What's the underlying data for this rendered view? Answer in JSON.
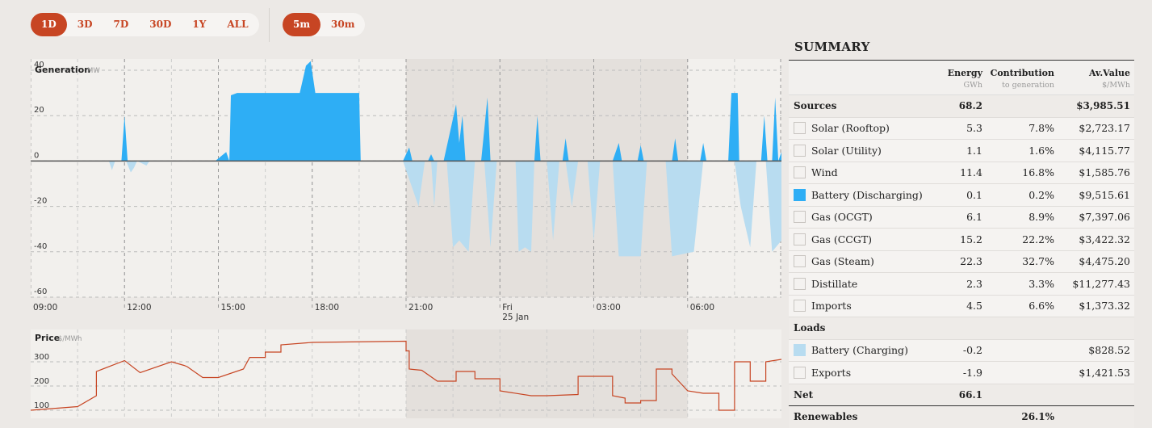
{
  "range_buttons": [
    {
      "label": "1D",
      "active": true
    },
    {
      "label": "3D",
      "active": false
    },
    {
      "label": "7D",
      "active": false
    },
    {
      "label": "30D",
      "active": false
    },
    {
      "label": "1Y",
      "active": false
    },
    {
      "label": "ALL",
      "active": false
    }
  ],
  "interval_buttons": [
    {
      "label": "5m",
      "active": true
    },
    {
      "label": "30m",
      "active": false
    }
  ],
  "generation_chart": {
    "title": "Generation",
    "unit": "MW",
    "y_ticks": [
      "40",
      "20",
      "0",
      "-20",
      "-40",
      "-60"
    ],
    "x_ticks": [
      {
        "line1": "09:00",
        "line2": ""
      },
      {
        "line1": "12:00",
        "line2": ""
      },
      {
        "line1": "15:00",
        "line2": ""
      },
      {
        "line1": "18:00",
        "line2": ""
      },
      {
        "line1": "21:00",
        "line2": ""
      },
      {
        "line1": "Fri",
        "line2": "25 Jan"
      },
      {
        "line1": "03:00",
        "line2": ""
      },
      {
        "line1": "06:00",
        "line2": ""
      }
    ]
  },
  "price_chart": {
    "title": "Price",
    "unit": "$/MWh",
    "y_ticks": [
      "300",
      "200",
      "100"
    ]
  },
  "chart_data": [
    {
      "type": "area",
      "ylabel": "Generation MW",
      "ylim": [
        -60,
        45
      ],
      "x_range_hours": [
        9,
        33
      ],
      "x_tick_labels": [
        "09:00",
        "12:00",
        "15:00",
        "18:00",
        "21:00",
        "Fri 25 Jan",
        "03:00",
        "06:00"
      ],
      "y_tick_labels": [
        "40",
        "20",
        "0",
        "-20",
        "-40",
        "-60"
      ],
      "series": [
        {
          "name": "Battery (Discharging)",
          "color": "#2eaef5",
          "points": [
            [
              9,
              0
            ],
            [
              11.9,
              0
            ],
            [
              12,
              20
            ],
            [
              12.1,
              0
            ],
            [
              14.9,
              0
            ],
            [
              15.25,
              4
            ],
            [
              15.35,
              0
            ],
            [
              15.4,
              29
            ],
            [
              15.6,
              30
            ],
            [
              17.6,
              30
            ],
            [
              17.8,
              42
            ],
            [
              17.95,
              44
            ],
            [
              18.1,
              30
            ],
            [
              19.5,
              30
            ],
            [
              19.55,
              0
            ],
            [
              20.9,
              0
            ],
            [
              21.1,
              6
            ],
            [
              21.2,
              0
            ],
            [
              21.7,
              0
            ],
            [
              21.8,
              3
            ],
            [
              21.9,
              0
            ],
            [
              22.2,
              0
            ],
            [
              22.6,
              25
            ],
            [
              22.7,
              8
            ],
            [
              22.8,
              20
            ],
            [
              22.9,
              0
            ],
            [
              23.4,
              0
            ],
            [
              23.6,
              28
            ],
            [
              23.7,
              0
            ],
            [
              25.1,
              0
            ],
            [
              25.2,
              20
            ],
            [
              25.3,
              0
            ],
            [
              26.0,
              0
            ],
            [
              26.1,
              10
            ],
            [
              26.2,
              0
            ],
            [
              27.6,
              0
            ],
            [
              27.8,
              8
            ],
            [
              27.9,
              0
            ],
            [
              28.4,
              0
            ],
            [
              28.5,
              7
            ],
            [
              28.6,
              0
            ],
            [
              29.5,
              0
            ],
            [
              29.6,
              10
            ],
            [
              29.7,
              0
            ],
            [
              30.4,
              0
            ],
            [
              30.5,
              8
            ],
            [
              30.6,
              0
            ],
            [
              31.3,
              0
            ],
            [
              31.4,
              30
            ],
            [
              31.6,
              30
            ],
            [
              31.65,
              0
            ],
            [
              32.35,
              0
            ],
            [
              32.45,
              20
            ],
            [
              32.55,
              0
            ],
            [
              32.7,
              0
            ],
            [
              32.8,
              28
            ],
            [
              32.9,
              0
            ],
            [
              33,
              4
            ]
          ]
        },
        {
          "name": "Battery (Charging)",
          "color": "#b8dcf0",
          "points": [
            [
              9,
              0
            ],
            [
              11.5,
              0
            ],
            [
              11.6,
              -4
            ],
            [
              11.7,
              0
            ],
            [
              12.05,
              0
            ],
            [
              12.2,
              -5
            ],
            [
              12.3,
              -3
            ],
            [
              12.4,
              0
            ],
            [
              12.7,
              -2
            ],
            [
              12.8,
              0
            ],
            [
              20.9,
              0
            ],
            [
              21.4,
              -20
            ],
            [
              21.6,
              0
            ],
            [
              21.8,
              0
            ],
            [
              21.9,
              -20
            ],
            [
              22.0,
              0
            ],
            [
              22.3,
              0
            ],
            [
              22.5,
              -38
            ],
            [
              22.7,
              -35
            ],
            [
              23.0,
              -40
            ],
            [
              23.2,
              0
            ],
            [
              23.5,
              0
            ],
            [
              23.7,
              -38
            ],
            [
              23.9,
              0
            ],
            [
              24.5,
              0
            ],
            [
              24.6,
              -40
            ],
            [
              24.8,
              -38
            ],
            [
              25.0,
              -40
            ],
            [
              25.1,
              0
            ],
            [
              25.5,
              0
            ],
            [
              25.7,
              -35
            ],
            [
              25.9,
              0
            ],
            [
              26.1,
              0
            ],
            [
              26.3,
              -20
            ],
            [
              26.5,
              0
            ],
            [
              26.8,
              0
            ],
            [
              27.0,
              -35
            ],
            [
              27.2,
              0
            ],
            [
              27.6,
              0
            ],
            [
              27.8,
              -42
            ],
            [
              28.0,
              -42
            ],
            [
              28.5,
              -42
            ],
            [
              28.7,
              0
            ],
            [
              29.3,
              0
            ],
            [
              29.5,
              -42
            ],
            [
              30.2,
              -40
            ],
            [
              30.5,
              0
            ],
            [
              31.5,
              0
            ],
            [
              31.7,
              -20
            ],
            [
              32.0,
              -38
            ],
            [
              32.2,
              0
            ],
            [
              32.5,
              0
            ],
            [
              32.7,
              -40
            ],
            [
              33,
              -35
            ]
          ]
        }
      ]
    },
    {
      "type": "line",
      "ylabel": "Price $/MWh",
      "ylim": [
        0,
        400
      ],
      "x_range_hours": [
        9,
        33
      ],
      "y_tick_labels": [
        "300",
        "200",
        "100"
      ],
      "series": [
        {
          "name": "Price",
          "color": "#c74523",
          "points": [
            [
              9,
              100
            ],
            [
              10,
              110
            ],
            [
              10.5,
              115
            ],
            [
              11.1,
              160
            ],
            [
              11.1,
              260
            ],
            [
              12,
              305
            ],
            [
              12.5,
              255
            ],
            [
              13.5,
              300
            ],
            [
              13.9,
              285
            ],
            [
              14,
              280
            ],
            [
              14.5,
              235
            ],
            [
              15,
              235
            ],
            [
              15.8,
              270
            ],
            [
              16,
              318
            ],
            [
              16.5,
              318
            ],
            [
              16.5,
              340
            ],
            [
              17.0,
              340
            ],
            [
              17.0,
              370
            ],
            [
              18.0,
              380
            ],
            [
              21.0,
              385
            ],
            [
              21.0,
              345
            ],
            [
              21.1,
              345
            ],
            [
              21.1,
              270
            ],
            [
              21.5,
              265
            ],
            [
              22.0,
              220
            ],
            [
              22.6,
              220
            ],
            [
              22.6,
              260
            ],
            [
              23.2,
              260
            ],
            [
              23.2,
              230
            ],
            [
              24.0,
              230
            ],
            [
              24.0,
              180
            ],
            [
              25.0,
              160
            ],
            [
              25.5,
              160
            ],
            [
              25.5,
              160
            ],
            [
              26.5,
              165
            ],
            [
              26.5,
              240
            ],
            [
              27.5,
              240
            ],
            [
              27.6,
              240
            ],
            [
              27.6,
              160
            ],
            [
              28.0,
              150
            ],
            [
              28.0,
              130
            ],
            [
              28.5,
              130
            ],
            [
              28.5,
              140
            ],
            [
              29.0,
              140
            ],
            [
              29.0,
              270
            ],
            [
              29.5,
              270
            ],
            [
              29.5,
              250
            ],
            [
              30.0,
              180
            ],
            [
              30.5,
              170
            ],
            [
              31.0,
              170
            ],
            [
              31.0,
              100
            ],
            [
              31.5,
              100
            ],
            [
              31.5,
              300
            ],
            [
              32.0,
              300
            ],
            [
              32.0,
              220
            ],
            [
              32.5,
              220
            ],
            [
              32.5,
              300
            ],
            [
              33,
              310
            ]
          ]
        }
      ]
    }
  ],
  "summary": {
    "title": "SUMMARY",
    "headers": {
      "energy": "Energy",
      "energy_unit": "GWh",
      "contribution": "Contribution",
      "contribution_unit": "to generation",
      "avvalue": "Av.Value",
      "avvalue_unit": "$/MWh"
    },
    "sources_label": "Sources",
    "sources_energy": "68.2",
    "sources_value": "$3,985.51",
    "sources": [
      {
        "name": "Solar (Rooftop)",
        "energy": "5.3",
        "contribution": "7.8%",
        "value": "$2,723.17",
        "swatch": ""
      },
      {
        "name": "Solar (Utility)",
        "energy": "1.1",
        "contribution": "1.6%",
        "value": "$4,115.77",
        "swatch": ""
      },
      {
        "name": "Wind",
        "energy": "11.4",
        "contribution": "16.8%",
        "value": "$1,585.76",
        "swatch": ""
      },
      {
        "name": "Battery (Discharging)",
        "energy": "0.1",
        "contribution": "0.2%",
        "value": "$9,515.61",
        "swatch": "#2eaef5"
      },
      {
        "name": "Gas (OCGT)",
        "energy": "6.1",
        "contribution": "8.9%",
        "value": "$7,397.06",
        "swatch": ""
      },
      {
        "name": "Gas (CCGT)",
        "energy": "15.2",
        "contribution": "22.2%",
        "value": "$3,422.32",
        "swatch": ""
      },
      {
        "name": "Gas (Steam)",
        "energy": "22.3",
        "contribution": "32.7%",
        "value": "$4,475.20",
        "swatch": ""
      },
      {
        "name": "Distillate",
        "energy": "2.3",
        "contribution": "3.3%",
        "value": "$11,277.43",
        "swatch": ""
      },
      {
        "name": "Imports",
        "energy": "4.5",
        "contribution": "6.6%",
        "value": "$1,373.32",
        "swatch": ""
      }
    ],
    "loads_label": "Loads",
    "loads": [
      {
        "name": "Battery (Charging)",
        "energy": "-0.2",
        "contribution": "",
        "value": "$828.52",
        "swatch": "#b8dcf0"
      },
      {
        "name": "Exports",
        "energy": "-1.9",
        "contribution": "",
        "value": "$1,421.53",
        "swatch": ""
      }
    ],
    "net_label": "Net",
    "net_energy": "66.1",
    "renewables_label": "Renewables",
    "renewables_contribution": "26.1%"
  }
}
